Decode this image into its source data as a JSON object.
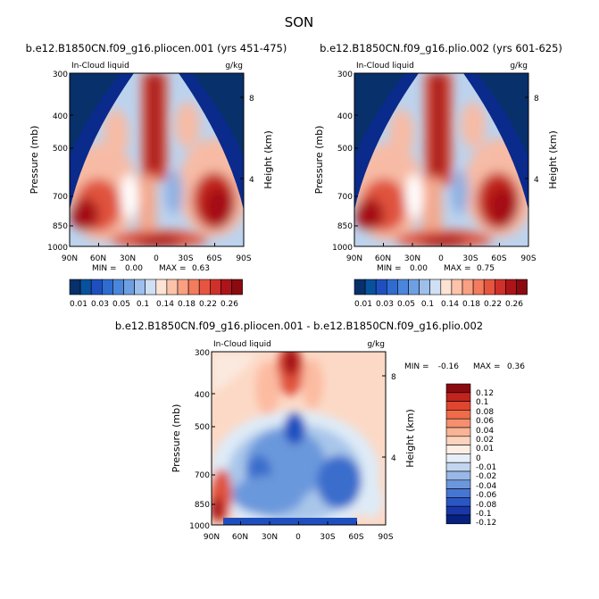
{
  "figure_title": "SON",
  "chart_data": [
    {
      "type": "heatmap",
      "title": "b.e12.B1850CN.f09_g16.pliocen.001 (yrs 451-475)",
      "left_label": "In-Cloud liquid",
      "right_label": "g/kg",
      "ylabel": "Pressure (mb)",
      "ylabel_right": "Height (km)",
      "x_ticks": [
        "90N",
        "60N",
        "30N",
        "0",
        "30S",
        "60S",
        "90S"
      ],
      "y_ticks": [
        "300",
        "400",
        "500",
        "700",
        "850",
        "1000"
      ],
      "height_ticks": [
        "8",
        "4"
      ],
      "min_label": "MIN =",
      "min_value": "0.00",
      "max_label": "MAX =",
      "max_value": "0.63",
      "levels": [
        0.01,
        0.02,
        0.03,
        0.04,
        0.05,
        0.07,
        0.1,
        0.12,
        0.14,
        0.16,
        0.18,
        0.2,
        0.22,
        0.24,
        0.26
      ],
      "colorbar_labels": [
        "0.01",
        "0.03",
        "0.05",
        "0.1",
        "0.14",
        "0.18",
        "0.22",
        "0.26"
      ]
    },
    {
      "type": "heatmap",
      "title": "b.e12.B1850CN.f09_g16.plio.002 (yrs 601-625)",
      "left_label": "In-Cloud liquid",
      "right_label": "g/kg",
      "ylabel": "Pressure (mb)",
      "ylabel_right": "Height (km)",
      "x_ticks": [
        "90N",
        "60N",
        "30N",
        "0",
        "30S",
        "60S",
        "90S"
      ],
      "y_ticks": [
        "300",
        "400",
        "500",
        "700",
        "850",
        "1000"
      ],
      "height_ticks": [
        "8",
        "4"
      ],
      "min_label": "MIN =",
      "min_value": "0.00",
      "max_label": "MAX =",
      "max_value": "0.75",
      "levels": [
        0.01,
        0.02,
        0.03,
        0.04,
        0.05,
        0.07,
        0.1,
        0.12,
        0.14,
        0.16,
        0.18,
        0.2,
        0.22,
        0.24,
        0.26
      ],
      "colorbar_labels": [
        "0.01",
        "0.03",
        "0.05",
        "0.1",
        "0.14",
        "0.18",
        "0.22",
        "0.26"
      ]
    },
    {
      "type": "heatmap",
      "title": "b.e12.B1850CN.f09_g16.pliocen.001 - b.e12.B1850CN.f09_g16.plio.002",
      "left_label": "In-Cloud liquid",
      "right_label": "g/kg",
      "ylabel": "Pressure (mb)",
      "ylabel_right": "Height (km)",
      "x_ticks": [
        "90N",
        "60N",
        "30N",
        "0",
        "30S",
        "60S",
        "90S"
      ],
      "y_ticks": [
        "300",
        "400",
        "500",
        "700",
        "850",
        "1000"
      ],
      "height_ticks": [
        "8",
        "4"
      ],
      "min_label": "MIN =",
      "min_value": "-0.16",
      "max_label": "MAX =",
      "max_value": "0.36",
      "colorbar_labels": [
        "0.12",
        "0.1",
        "0.08",
        "0.06",
        "0.04",
        "0.02",
        "0.01",
        "0",
        "-0.01",
        "-0.02",
        "-0.04",
        "-0.06",
        "-0.08",
        "-0.1",
        "-0.12"
      ]
    }
  ]
}
